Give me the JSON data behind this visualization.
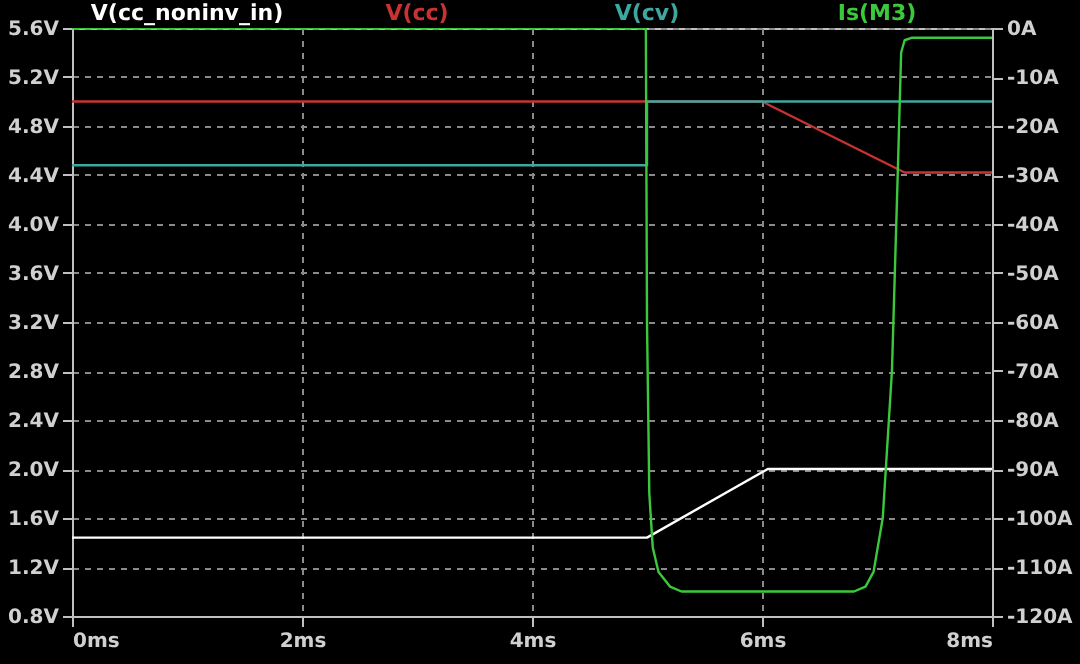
{
  "chart_data": {
    "type": "line",
    "xlim": [
      0,
      8
    ],
    "xticks": [
      {
        "value": 0,
        "label": "0ms"
      },
      {
        "value": 2,
        "label": "2ms"
      },
      {
        "value": 4,
        "label": "4ms"
      },
      {
        "value": 6,
        "label": "6ms"
      },
      {
        "value": 8,
        "label": "8ms"
      }
    ],
    "ylim": [
      0.8,
      5.6
    ],
    "yticks": [
      {
        "value": 0.8,
        "label": "0.8V"
      },
      {
        "value": 1.2,
        "label": "1.2V"
      },
      {
        "value": 1.6,
        "label": "1.6V"
      },
      {
        "value": 2.0,
        "label": "2.0V"
      },
      {
        "value": 2.4,
        "label": "2.4V"
      },
      {
        "value": 2.8,
        "label": "2.8V"
      },
      {
        "value": 3.2,
        "label": "3.2V"
      },
      {
        "value": 3.6,
        "label": "3.6V"
      },
      {
        "value": 4.0,
        "label": "4.0V"
      },
      {
        "value": 4.4,
        "label": "4.4V"
      },
      {
        "value": 4.8,
        "label": "4.8V"
      },
      {
        "value": 5.2,
        "label": "5.2V"
      },
      {
        "value": 5.6,
        "label": "5.6V"
      }
    ],
    "y2lim": [
      -120,
      0
    ],
    "y2ticks": [
      {
        "value": -120,
        "label": "-120A"
      },
      {
        "value": -110,
        "label": "-110A"
      },
      {
        "value": -100,
        "label": "-100A"
      },
      {
        "value": -90,
        "label": "-90A"
      },
      {
        "value": -80,
        "label": "-80A"
      },
      {
        "value": -70,
        "label": "-70A"
      },
      {
        "value": -60,
        "label": "-60A"
      },
      {
        "value": -50,
        "label": "-50A"
      },
      {
        "value": -40,
        "label": "-40A"
      },
      {
        "value": -30,
        "label": "-30A"
      },
      {
        "value": -20,
        "label": "-20A"
      },
      {
        "value": -10,
        "label": "-10A"
      },
      {
        "value": 0,
        "label": "0A"
      }
    ],
    "grid": true,
    "legend": "top",
    "line_style": "solid",
    "series": [
      {
        "name": "V(cc_noninv_in)",
        "color": "#ffffff",
        "x": [
          0,
          5,
          6.05,
          8
        ],
        "values": [
          1.44,
          1.44,
          2.0,
          2.0
        ]
      },
      {
        "name": "V(cc)",
        "color": "#c83232",
        "x": [
          0,
          5,
          6,
          7.24,
          8
        ],
        "values": [
          5.0,
          5.0,
          5.0,
          4.42,
          4.42
        ]
      },
      {
        "name": "V(cv)",
        "color": "#3ca8a0",
        "x": [
          0,
          5,
          5,
          8
        ],
        "values": [
          4.48,
          4.48,
          5.0,
          5.0
        ]
      },
      {
        "name": "Is(M3)",
        "color": "#3cc83c",
        "axis": "y2",
        "x": [
          0,
          4.99,
          5.0,
          5.02,
          5.05,
          5.1,
          5.2,
          5.3,
          6.8,
          6.9,
          6.97,
          7.05,
          7.13,
          7.18,
          7.21,
          7.24,
          7.3,
          8
        ],
        "values": [
          0,
          0,
          -60,
          -95,
          -106,
          -111,
          -114,
          -115,
          -115,
          -114,
          -111,
          -100,
          -70,
          -30,
          -5,
          -2.5,
          -2,
          -2
        ]
      }
    ]
  }
}
